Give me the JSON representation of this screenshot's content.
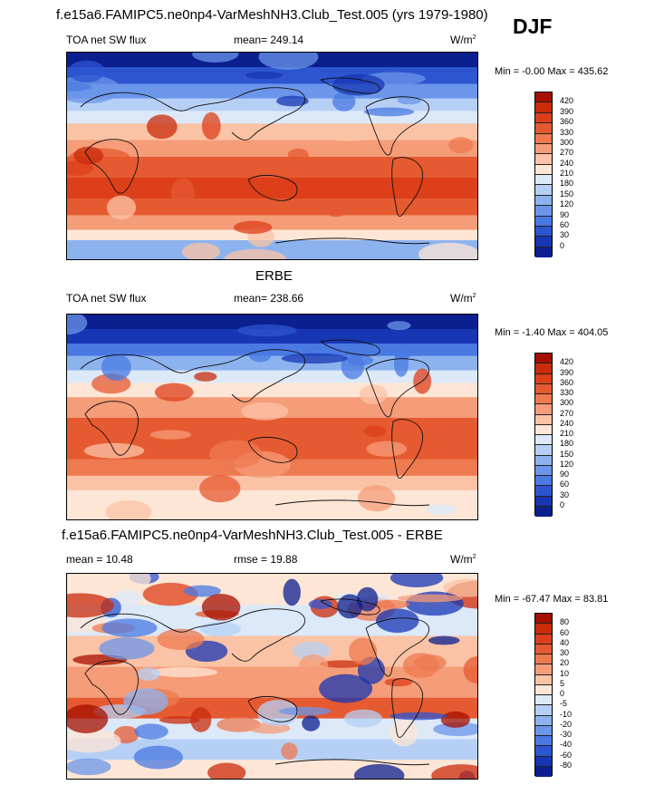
{
  "title_top": "f.e15a6.FAMIPC5.ne0np4-VarMeshNH3.Club_Test.005 (yrs 1979-1980)",
  "season": "DJF",
  "title_mid": "ERBE",
  "title_diff": "f.e15a6.FAMIPC5.ne0np4-VarMeshNH3.Club_Test.005 - ERBE",
  "panels": [
    {
      "left_label": "TOA net SW flux",
      "center_label": "mean= 249.14",
      "units": "W/m",
      "units_sup": "2",
      "minmax": "Min =  -0.00 Max = 435.62",
      "levels": [
        "420",
        "390",
        "360",
        "330",
        "300",
        "270",
        "240",
        "210",
        "180",
        "150",
        "120",
        "90",
        "60",
        "30",
        "0"
      ],
      "colors": [
        "#a50f00",
        "#c92b0b",
        "#dc3f1a",
        "#e55a30",
        "#ee7a50",
        "#f59c78",
        "#fbc3a5",
        "#fde6d6",
        "#dce9f9",
        "#b6d0f5",
        "#8db3ef",
        "#6b96ea",
        "#4a79e2",
        "#2d55d0",
        "#1736b3",
        "#0b1f8f"
      ]
    },
    {
      "left_label": "TOA net SW flux",
      "center_label": "mean= 238.66",
      "units": "W/m",
      "units_sup": "2",
      "minmax": "Min =  -1.40 Max = 404.05",
      "levels": [
        "420",
        "390",
        "360",
        "330",
        "300",
        "270",
        "240",
        "210",
        "180",
        "150",
        "120",
        "90",
        "60",
        "30",
        "0"
      ],
      "colors": [
        "#a50f00",
        "#c92b0b",
        "#dc3f1a",
        "#e55a30",
        "#ee7a50",
        "#f59c78",
        "#fbc3a5",
        "#fde6d6",
        "#dce9f9",
        "#b6d0f5",
        "#8db3ef",
        "#6b96ea",
        "#4a79e2",
        "#2d55d0",
        "#1736b3",
        "#0b1f8f"
      ]
    },
    {
      "left_label": "mean =  10.48",
      "center_label": "rmse =  19.88",
      "units": "W/m",
      "units_sup": "2",
      "minmax": "Min = -67.47 Max =  83.81",
      "levels": [
        "80",
        "60",
        "40",
        "30",
        "20",
        "10",
        "5",
        "0",
        "-5",
        "-10",
        "-20",
        "-30",
        "-40",
        "-60",
        "-80"
      ],
      "colors": [
        "#a50f00",
        "#c92b0b",
        "#dc3f1a",
        "#e55a30",
        "#ee7a50",
        "#f59c78",
        "#fbc3a5",
        "#fde6d6",
        "#dce9f9",
        "#b6d0f5",
        "#8db3ef",
        "#6b96ea",
        "#4a79e2",
        "#2d55d0",
        "#1736b3",
        "#0b1f8f"
      ]
    }
  ]
}
